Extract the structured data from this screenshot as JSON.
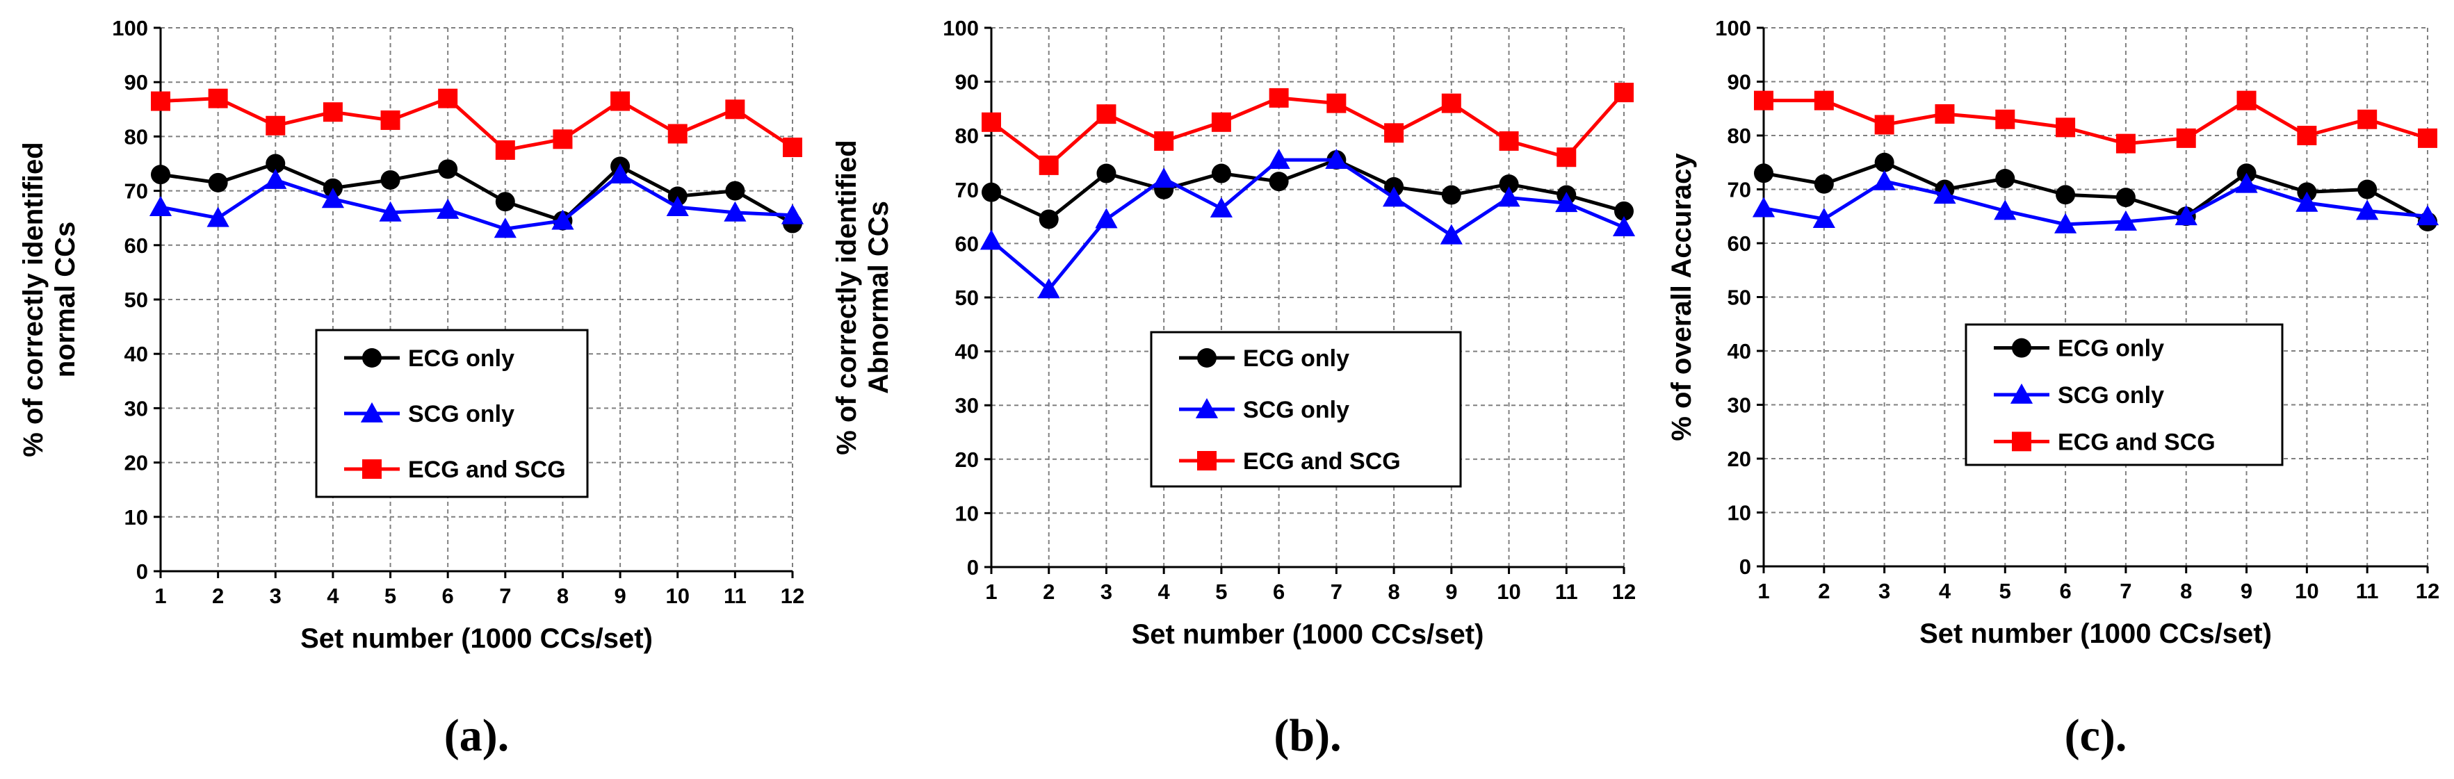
{
  "chart_data": [
    {
      "type": "line",
      "panel": "a",
      "caption": "(a).",
      "ylabel_lines": [
        "% of correctly identified",
        "normal CCs"
      ],
      "xlabel": "Set number (1000 CCs/set)",
      "categories": [
        "1",
        "2",
        "3",
        "4",
        "5",
        "6",
        "7",
        "8",
        "9",
        "10",
        "11",
        "12"
      ],
      "yticks": [
        "0",
        "10",
        "20",
        "30",
        "40",
        "50",
        "60",
        "70",
        "80",
        "90",
        "100"
      ],
      "ylim": [
        0,
        100
      ],
      "grid": true,
      "legend": "center",
      "series": [
        {
          "name": "ECG only",
          "color": "#000000",
          "marker": "circle",
          "values": [
            73,
            71.5,
            75,
            70.5,
            72,
            74,
            68,
            64.5,
            74.5,
            69,
            70,
            64
          ]
        },
        {
          "name": "SCG only",
          "color": "#0000ff",
          "marker": "triangle",
          "values": [
            67,
            65,
            72,
            68.5,
            66,
            66.5,
            63,
            64.5,
            73,
            67,
            66,
            65.5
          ]
        },
        {
          "name": "ECG and SCG",
          "color": "#ff0000",
          "marker": "square",
          "values": [
            86.5,
            87,
            82,
            84.5,
            83,
            87,
            77.5,
            79.5,
            86.5,
            80.5,
            85,
            78
          ]
        }
      ]
    },
    {
      "type": "line",
      "panel": "b",
      "caption": "(b).",
      "ylabel_lines": [
        "% of correctly identified",
        "Abnormal CCs"
      ],
      "xlabel": "Set number (1000 CCs/set)",
      "categories": [
        "1",
        "2",
        "3",
        "4",
        "5",
        "6",
        "7",
        "8",
        "9",
        "10",
        "11",
        "12"
      ],
      "yticks": [
        "0",
        "10",
        "20",
        "30",
        "40",
        "50",
        "60",
        "70",
        "80",
        "90",
        "100"
      ],
      "ylim": [
        0,
        100
      ],
      "grid": true,
      "legend": "center",
      "series": [
        {
          "name": "ECG only",
          "color": "#000000",
          "marker": "circle",
          "values": [
            69.5,
            64.5,
            73,
            70,
            73,
            71.5,
            75.5,
            70.5,
            69,
            71,
            69,
            66
          ]
        },
        {
          "name": "SCG only",
          "color": "#0000ff",
          "marker": "triangle",
          "values": [
            60.5,
            51.5,
            64.5,
            72,
            66.5,
            75.5,
            75.5,
            68.5,
            61.5,
            68.5,
            67.5,
            63
          ]
        },
        {
          "name": "ECG and SCG",
          "color": "#ff0000",
          "marker": "square",
          "values": [
            82.5,
            74.5,
            84,
            79,
            82.5,
            87,
            86,
            80.5,
            86,
            79,
            76,
            88
          ]
        }
      ]
    },
    {
      "type": "line",
      "panel": "c",
      "caption": "(c).",
      "ylabel_lines": [
        "% of overall Accuracy"
      ],
      "xlabel": "Set number (1000 CCs/set)",
      "categories": [
        "1",
        "2",
        "3",
        "4",
        "5",
        "6",
        "7",
        "8",
        "9",
        "10",
        "11",
        "12"
      ],
      "yticks": [
        "0",
        "10",
        "20",
        "30",
        "40",
        "50",
        "60",
        "70",
        "80",
        "90",
        "100"
      ],
      "ylim": [
        0,
        100
      ],
      "grid": true,
      "legend": "center",
      "series": [
        {
          "name": "ECG only",
          "color": "#000000",
          "marker": "circle",
          "values": [
            73,
            71,
            75,
            70,
            72,
            69,
            68.5,
            65,
            73,
            69.5,
            70,
            64
          ]
        },
        {
          "name": "SCG only",
          "color": "#0000ff",
          "marker": "triangle",
          "values": [
            66.5,
            64.5,
            71.5,
            69,
            66,
            63.5,
            64,
            65,
            71,
            67.5,
            66,
            65
          ]
        },
        {
          "name": "ECG and SCG",
          "color": "#ff0000",
          "marker": "square",
          "values": [
            86.5,
            86.5,
            82,
            84,
            83,
            81.5,
            78.5,
            79.5,
            86.5,
            80,
            83,
            79.5
          ]
        }
      ]
    }
  ]
}
